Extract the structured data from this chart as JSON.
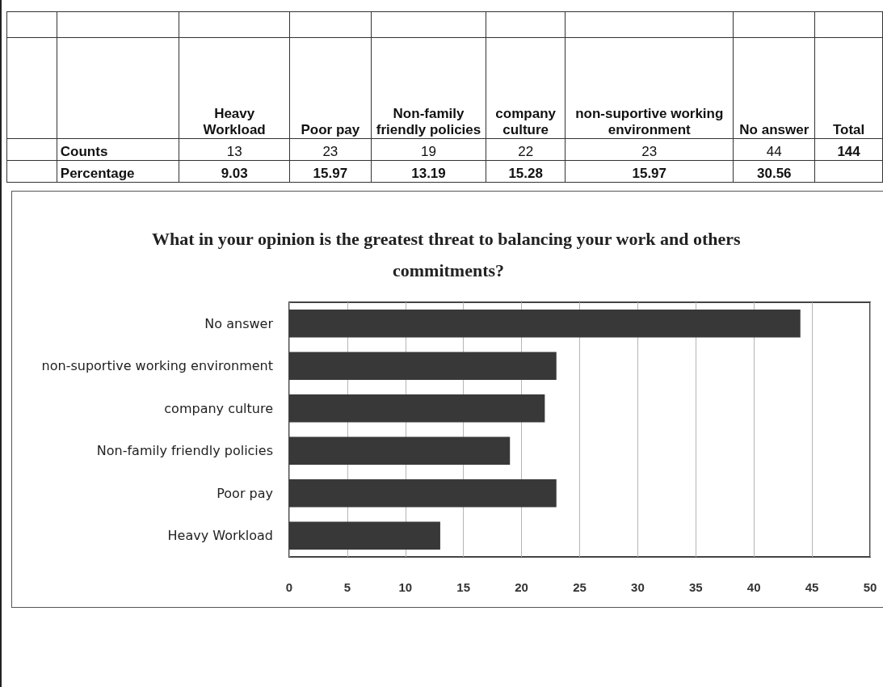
{
  "chart_data": [
    {
      "type": "other",
      "categories": [
        "Heavy Workload",
        "Poor pay",
        "Non-family friendly policies",
        "company culture",
        "non-suportive working environment",
        "No answer",
        "Total"
      ],
      "series": [
        {
          "name": "Counts",
          "values": [
            13,
            23,
            19,
            22,
            23,
            44,
            144
          ]
        },
        {
          "name": "Percentage",
          "values": [
            9.03,
            15.97,
            13.19,
            15.28,
            15.97,
            30.56,
            null
          ]
        }
      ],
      "data_labels": true
    },
    {
      "type": "bar",
      "orientation": "horizontal",
      "title": "What in your opinion is the greatest threat to balancing your work and others commitments?",
      "categories": [
        "No answer",
        "non-suportive working environment",
        "company culture",
        "Non-family friendly policies",
        "Poor pay",
        "Heavy Workload"
      ],
      "values": [
        44,
        23,
        22,
        19,
        23,
        13
      ],
      "color": "#383838",
      "xlim": [
        0,
        50
      ],
      "xticks": [
        0,
        5,
        10,
        15,
        20,
        25,
        30,
        35,
        40,
        45,
        50
      ],
      "grid": "x"
    }
  ]
}
